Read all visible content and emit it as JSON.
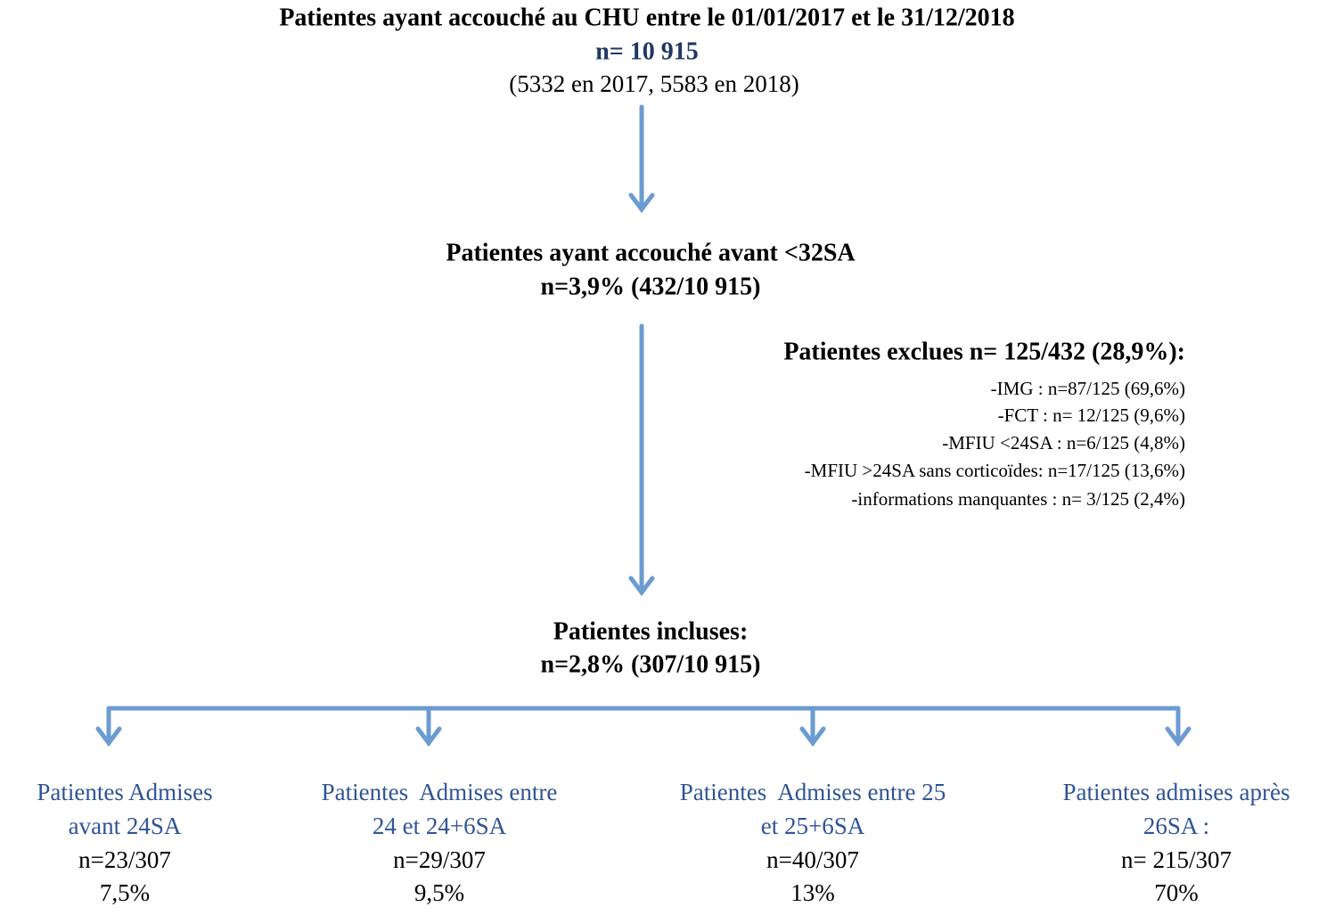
{
  "nodes": [
    {
      "title": "Patientes ayant accouché au CHU entre le 01/01/2017 et le 31/12/2018",
      "n": "n= 10 915",
      "detail": "(5332 en 2017, 5583 en 2018)"
    },
    {
      "title": "Patientes ayant accouché avant <32SA",
      "n": "n=3,9% (432/10 915)"
    },
    {
      "title": "Patientes incluses:",
      "n": "n=2,8% (307/10 915)"
    }
  ],
  "exclusions": {
    "title": "Patientes exclues n= 125/432 (28,9%):",
    "items": [
      "-IMG : n=87/125 (69,6%)",
      "-FCT : n= 12/125 (9,6%)",
      "-MFIU <24SA : n=6/125 (4,8%)",
      "-MFIU >24SA sans corticoïdes: n=17/125 (13,6%)",
      "-informations manquantes : n= 3/125 (2,4%)"
    ]
  },
  "groups": [
    {
      "label": [
        "Patientes Admises",
        "avant 24SA"
      ],
      "n": "n=23/307",
      "percent": "7,5%"
    },
    {
      "label": [
        "Patientes  Admises entre",
        "24 et 24+6SA"
      ],
      "n": "n=29/307",
      "percent": "9,5%"
    },
    {
      "label": [
        "Patientes  Admises entre 25",
        "et 25+6SA"
      ],
      "n": "n=40/307",
      "percent": "13%"
    },
    {
      "label": [
        "Patientes admises après",
        "26SA :"
      ],
      "n": "n= 215/307",
      "percent": "70%"
    }
  ]
}
